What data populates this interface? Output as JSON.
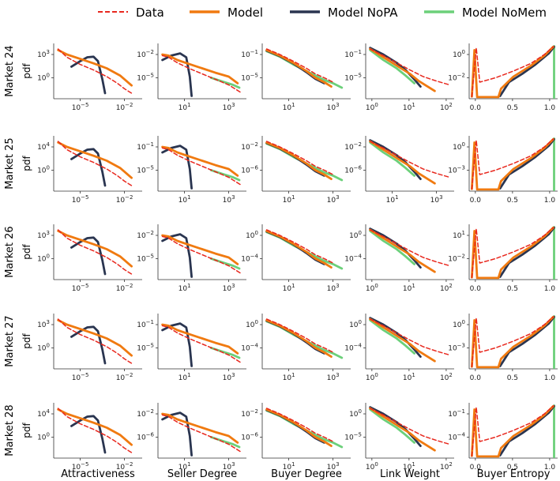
{
  "chart_data": {
    "type": "line",
    "legend": {
      "placement": "top",
      "entries": [
        {
          "name": "Data",
          "color": "#e8281e",
          "style": "dashed"
        },
        {
          "name": "Model",
          "color": "#f07a10",
          "style": "solid"
        },
        {
          "name": "Model NoPA",
          "color": "#2a3550",
          "style": "solid"
        },
        {
          "name": "Model NoMem",
          "color": "#6cd07a",
          "style": "solid"
        }
      ]
    },
    "ylabel": "pdf",
    "rows": [
      "Market 24",
      "Market 25",
      "Market 26",
      "Market 27",
      "Market 28"
    ],
    "columns": [
      {
        "xlabel": "Attractiveness",
        "xscale": "log"
      },
      {
        "xlabel": "Seller Degree",
        "xscale": "log"
      },
      {
        "xlabel": "Buyer Degree",
        "xscale": "log"
      },
      {
        "xlabel": "Link Weight",
        "xscale": "log"
      },
      {
        "xlabel": "Buyer Entropy",
        "xscale": "linear"
      }
    ],
    "xticks": [
      [
        [
          "10^-5",
          "10^-2"
        ],
        [
          "10^1",
          "10^3"
        ],
        [
          "10^1",
          "10^3"
        ],
        [
          "10^0",
          "10^1",
          "10^2"
        ],
        [
          "0.0",
          "0.5",
          "1.0"
        ]
      ],
      [
        [
          "10^-5",
          "10^-2"
        ],
        [
          "10^1",
          "10^3"
        ],
        [
          "10^1",
          "10^3"
        ],
        [
          "10^1",
          "10^3"
        ],
        [
          "0.0",
          "0.5",
          "1.0"
        ]
      ],
      [
        [
          "10^-5",
          "10^-2"
        ],
        [
          "10^1",
          "10^3"
        ],
        [
          "10^1",
          "10^3"
        ],
        [
          "10^0",
          "10^1",
          "10^2"
        ],
        [
          "0.0",
          "0.5",
          "1.0"
        ]
      ],
      [
        [
          "10^-5",
          "10^-2"
        ],
        [
          "10^1",
          "10^3"
        ],
        [
          "10^1",
          "10^3"
        ],
        [
          "10^0",
          "10^1",
          "10^2"
        ],
        [
          "0.0",
          "0.5",
          "1.0"
        ]
      ],
      [
        [
          "10^-5",
          "10^-2"
        ],
        [
          "10^1",
          "10^3"
        ],
        [
          "10^1",
          "10^3"
        ],
        [
          "10^0",
          "10^1",
          "10^2"
        ],
        [
          "0.0",
          "0.5",
          "1.0"
        ]
      ]
    ],
    "yticks": [
      [
        [
          "10^3",
          "10^0"
        ],
        [
          "10^-2",
          "10^-5"
        ],
        [
          "10^-1",
          "10^-5"
        ],
        [
          "10^-1",
          "10^-5"
        ],
        [
          "10^0",
          "10^-2"
        ]
      ],
      [
        [
          "10^4",
          "10^0"
        ],
        [
          "10^-1",
          "10^-5"
        ],
        [
          "10^-2",
          "10^-6"
        ],
        [
          "10^-2",
          "10^-6"
        ],
        [
          "10^0",
          "10^-3"
        ]
      ],
      [
        [
          "10^3",
          "10^0"
        ],
        [
          "10^-2",
          "10^-5"
        ],
        [
          "10^0",
          "10^-4"
        ],
        [
          "10^0",
          "10^-4"
        ],
        [
          "10^1",
          "10^-2"
        ]
      ],
      [
        [
          "10^3",
          "10^0"
        ],
        [
          "10^-1",
          "10^-5"
        ],
        [
          "10^0",
          "10^-4"
        ],
        [
          "10^0",
          "10^-4"
        ],
        [
          "10^0",
          "10^-3"
        ]
      ],
      [
        [
          "10^4",
          "10^0"
        ],
        [
          "10^-2",
          "10^-6"
        ],
        [
          "10^-2",
          "10^-6"
        ],
        [
          "10^0",
          "10^-5"
        ],
        [
          "10^-1",
          "10^-4"
        ]
      ]
    ],
    "panel_shapes": {
      "Attractiveness": {
        "Data": [
          [
            0.05,
            0.1
          ],
          [
            0.15,
            0.25
          ],
          [
            0.3,
            0.38
          ],
          [
            0.45,
            0.48
          ],
          [
            0.6,
            0.6
          ],
          [
            0.72,
            0.72
          ],
          [
            0.8,
            0.82
          ],
          [
            0.88,
            0.9
          ]
        ],
        "Model": [
          [
            0.05,
            0.12
          ],
          [
            0.15,
            0.2
          ],
          [
            0.3,
            0.28
          ],
          [
            0.45,
            0.36
          ],
          [
            0.6,
            0.45
          ],
          [
            0.75,
            0.58
          ],
          [
            0.88,
            0.76
          ]
        ],
        "Model NoPA": [
          [
            0.2,
            0.42
          ],
          [
            0.3,
            0.32
          ],
          [
            0.38,
            0.25
          ],
          [
            0.45,
            0.24
          ],
          [
            0.5,
            0.32
          ],
          [
            0.55,
            0.65
          ],
          [
            0.58,
            0.9
          ]
        ]
      },
      "Seller Degree": {
        "Data": [
          [
            0.05,
            0.22
          ],
          [
            0.12,
            0.25
          ],
          [
            0.22,
            0.35
          ],
          [
            0.35,
            0.45
          ],
          [
            0.5,
            0.55
          ],
          [
            0.65,
            0.65
          ],
          [
            0.8,
            0.75
          ],
          [
            0.95,
            0.9
          ]
        ],
        "Model": [
          [
            0.05,
            0.2
          ],
          [
            0.12,
            0.22
          ],
          [
            0.22,
            0.3
          ],
          [
            0.35,
            0.37
          ],
          [
            0.5,
            0.45
          ],
          [
            0.65,
            0.53
          ],
          [
            0.8,
            0.6
          ],
          [
            0.9,
            0.72
          ]
        ],
        "Model NoPA": [
          [
            0.05,
            0.3
          ],
          [
            0.15,
            0.22
          ],
          [
            0.25,
            0.18
          ],
          [
            0.32,
            0.25
          ],
          [
            0.36,
            0.6
          ],
          [
            0.38,
            0.95
          ]
        ],
        "Model NoMem": [
          [
            0.6,
            0.62
          ],
          [
            0.75,
            0.7
          ],
          [
            0.85,
            0.75
          ],
          [
            0.92,
            0.8
          ]
        ]
      },
      "Buyer Degree": {
        "Data": [
          [
            0.05,
            0.1
          ],
          [
            0.2,
            0.2
          ],
          [
            0.35,
            0.32
          ],
          [
            0.5,
            0.45
          ],
          [
            0.6,
            0.55
          ],
          [
            0.7,
            0.62
          ],
          [
            0.8,
            0.7
          ]
        ],
        "Model": [
          [
            0.05,
            0.12
          ],
          [
            0.2,
            0.22
          ],
          [
            0.35,
            0.35
          ],
          [
            0.5,
            0.5
          ],
          [
            0.6,
            0.62
          ],
          [
            0.7,
            0.7
          ],
          [
            0.78,
            0.78
          ]
        ],
        "Model NoPA": [
          [
            0.05,
            0.13
          ],
          [
            0.2,
            0.23
          ],
          [
            0.35,
            0.36
          ],
          [
            0.5,
            0.52
          ],
          [
            0.6,
            0.64
          ],
          [
            0.7,
            0.72
          ]
        ],
        "Model NoMem": [
          [
            0.05,
            0.14
          ],
          [
            0.2,
            0.24
          ],
          [
            0.35,
            0.38
          ],
          [
            0.5,
            0.5
          ],
          [
            0.6,
            0.58
          ],
          [
            0.7,
            0.66
          ],
          [
            0.8,
            0.72
          ],
          [
            0.9,
            0.8
          ]
        ]
      },
      "Link Weight": {
        "Data": [
          [
            0.05,
            0.1
          ],
          [
            0.2,
            0.22
          ],
          [
            0.35,
            0.35
          ],
          [
            0.5,
            0.48
          ],
          [
            0.65,
            0.6
          ],
          [
            0.8,
            0.68
          ],
          [
            0.95,
            0.75
          ]
        ],
        "Model": [
          [
            0.05,
            0.1
          ],
          [
            0.2,
            0.25
          ],
          [
            0.35,
            0.4
          ],
          [
            0.5,
            0.55
          ],
          [
            0.6,
            0.68
          ],
          [
            0.7,
            0.78
          ],
          [
            0.78,
            0.86
          ]
        ],
        "Model NoPA": [
          [
            0.05,
            0.08
          ],
          [
            0.2,
            0.2
          ],
          [
            0.35,
            0.35
          ],
          [
            0.45,
            0.48
          ],
          [
            0.55,
            0.65
          ],
          [
            0.62,
            0.78
          ]
        ],
        "Model NoMem": [
          [
            0.05,
            0.12
          ],
          [
            0.2,
            0.3
          ],
          [
            0.35,
            0.45
          ],
          [
            0.45,
            0.58
          ],
          [
            0.55,
            0.72
          ]
        ]
      },
      "Buyer Entropy": {
        "Data": [
          [
            0.03,
            0.96
          ],
          [
            0.08,
            0.08
          ],
          [
            0.12,
            0.7
          ],
          [
            0.3,
            0.62
          ],
          [
            0.5,
            0.5
          ],
          [
            0.7,
            0.36
          ],
          [
            0.85,
            0.2
          ],
          [
            0.95,
            0.06
          ]
        ],
        "Model": [
          [
            0.03,
            0.96
          ],
          [
            0.06,
            0.12
          ],
          [
            0.09,
            0.97
          ],
          [
            0.33,
            0.97
          ],
          [
            0.36,
            0.82
          ],
          [
            0.5,
            0.6
          ],
          [
            0.7,
            0.4
          ],
          [
            0.85,
            0.22
          ],
          [
            0.95,
            0.06
          ]
        ],
        "Model NoPA": [
          [
            0.35,
            0.95
          ],
          [
            0.45,
            0.7
          ],
          [
            0.6,
            0.55
          ],
          [
            0.75,
            0.38
          ],
          [
            0.9,
            0.18
          ],
          [
            0.96,
            0.06
          ]
        ],
        "Model NoMem": [
          [
            0.96,
            0.05
          ],
          [
            0.96,
            0.98
          ]
        ]
      }
    }
  }
}
